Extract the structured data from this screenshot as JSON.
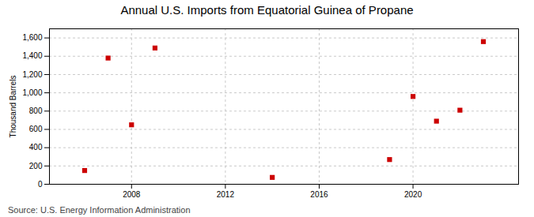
{
  "chart_data": {
    "type": "scatter",
    "title": "Annual U.S. Imports from Equatorial Guinea of Propane",
    "ylabel": "Thousand Barrels",
    "source": "Source: U.S. Energy Information Administration",
    "x": [
      2006,
      2007,
      2008,
      2009,
      2014,
      2019,
      2020,
      2021,
      2022,
      2023
    ],
    "values": [
      150,
      1380,
      650,
      1490,
      75,
      270,
      960,
      690,
      810,
      1560
    ],
    "xlim": [
      2004.5,
      2024.5
    ],
    "xticks": [
      2008,
      2012,
      2016,
      2020
    ],
    "ylim": [
      0,
      1700
    ],
    "yticks": [
      0,
      200,
      400,
      600,
      800,
      {
        "value": 1000,
        "label": "1,000"
      },
      {
        "value": 1200,
        "label": "1,200"
      },
      {
        "value": 1400,
        "label": "1,400"
      },
      {
        "value": 1600,
        "label": "1,600"
      }
    ],
    "color": "#cc0000",
    "marker": "square",
    "grid": true
  }
}
